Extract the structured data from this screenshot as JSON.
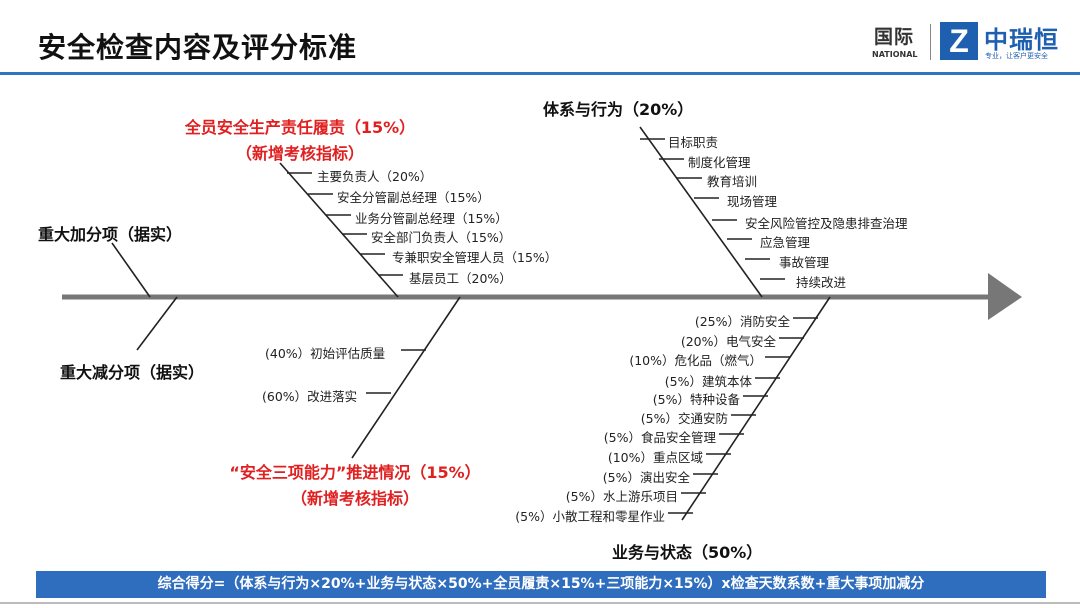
{
  "header": {
    "title": "安全检查内容及评分标准",
    "logo": {
      "cn_label": "国际",
      "en_label": "NATIONAL",
      "mark": "Z",
      "company_name": "中瑞恒",
      "slogan": "专业，让客户更安全"
    }
  },
  "diagram": {
    "major_bonus": "重大加分项（据实）",
    "major_deduction": "重大减分项（据实）",
    "branches": {
      "responsibility": {
        "title_line1": "全员安全生产责任履责（15%）",
        "title_line2": "（新增考核指标）",
        "items": [
          "主要负责人（20%）",
          "安全分管副总经理（15%）",
          "业务分管副总经理（15%）",
          "安全部门负责人（15%）",
          "专兼职安全管理人员（15%）",
          "基层员工（20%）"
        ]
      },
      "system": {
        "title": "体系与行为（20%）",
        "items": [
          "目标职责",
          "制度化管理",
          "教育培训",
          "现场管理",
          "安全风险管控及隐患排查治理",
          "应急管理",
          "事故管理",
          "持续改进"
        ]
      },
      "capability": {
        "title_line1": "“安全三项能力”推进情况（15%）",
        "title_line2": "（新增考核指标）",
        "items": [
          "(40%）初始评估质量",
          "(60%）改进落实"
        ]
      },
      "business": {
        "title": "业务与状态（50%）",
        "items": [
          "(25%）消防安全",
          "(20%）电气安全",
          "(10%）危化品（燃气）",
          "(5%）建筑本体",
          "(5%）特种设备",
          "(5%）交通安防",
          "(5%）食品安全管理",
          "(10%）重点区域",
          "(5%）演出安全",
          "(5%）水上游乐项目",
          "(5%）小散工程和零星作业"
        ]
      }
    }
  },
  "footer": {
    "formula": "综合得分=（体系与行为×20%+业务与状态×50%+全员履责×15%+三项能力×15%）x检查天数系数+重大事项加减分"
  },
  "colors": {
    "accent": "#2f6dbe",
    "red": "#e02020",
    "line": "#777777"
  }
}
